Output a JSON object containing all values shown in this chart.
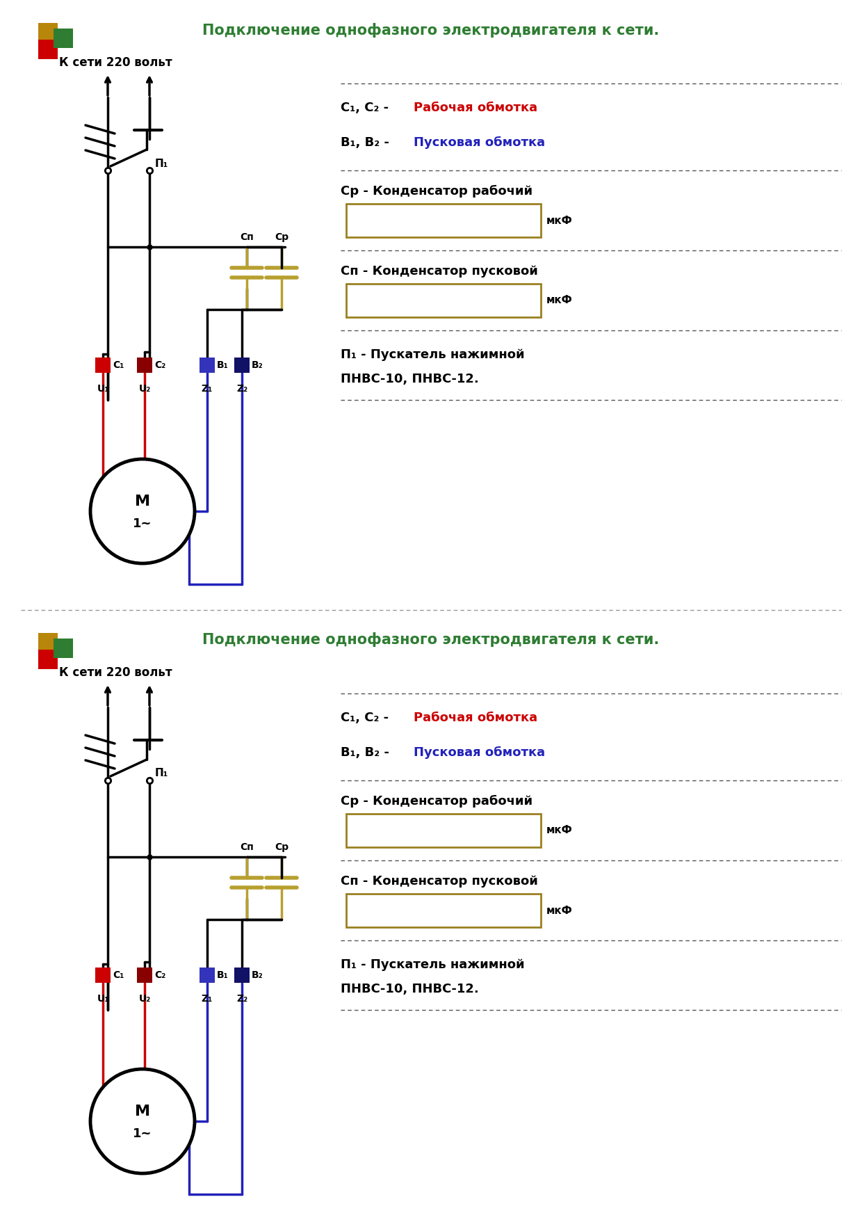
{
  "title": "Подключение однофазного электродвигателя к сети.",
  "title_color": "#2e7d32",
  "background_color": "#ffffff",
  "label_network": "К сети 220 вольт",
  "label_C1C2_black": "С₁, С₂ - ",
  "label_C1C2_colored": "Рабочая обмотка",
  "label_B1B2_black": "B₁, B₂ - ",
  "label_B1B2_colored": "Пусковая обмотка",
  "label_Cr": "Ср - Конденсатор рабочий",
  "label_Cn": "Сп - Конденсатор пусковой",
  "label_mkF": "мкФ",
  "label_P1": "П₁ - Пускатель нажимной",
  "label_P1_2": "ПНВС-10, ПНВС-12.",
  "label_motor": "M",
  "label_motor2": "1~",
  "label_U1": "U₁",
  "label_U2": "U₂",
  "label_Z1": "Z₁",
  "label_Z2": "Z₂",
  "label_Cn_cap": "Сп",
  "label_Cr_cap": "Ср",
  "label_P1_switch": "П₁",
  "red_color": "#cc0000",
  "blue_color": "#2222bb",
  "black_color": "#000000",
  "gold_color": "#b8a030",
  "gold_border": "#9a8020",
  "green_color": "#2e7d32",
  "divider_color": "#777777",
  "sq_gold": "#b8860b",
  "sq_red": "#cc0000",
  "sq_green": "#2e7d32",
  "c1_color": "#cc0000",
  "c2_color": "#880000",
  "b1_color": "#3333bb",
  "b2_color": "#111166"
}
